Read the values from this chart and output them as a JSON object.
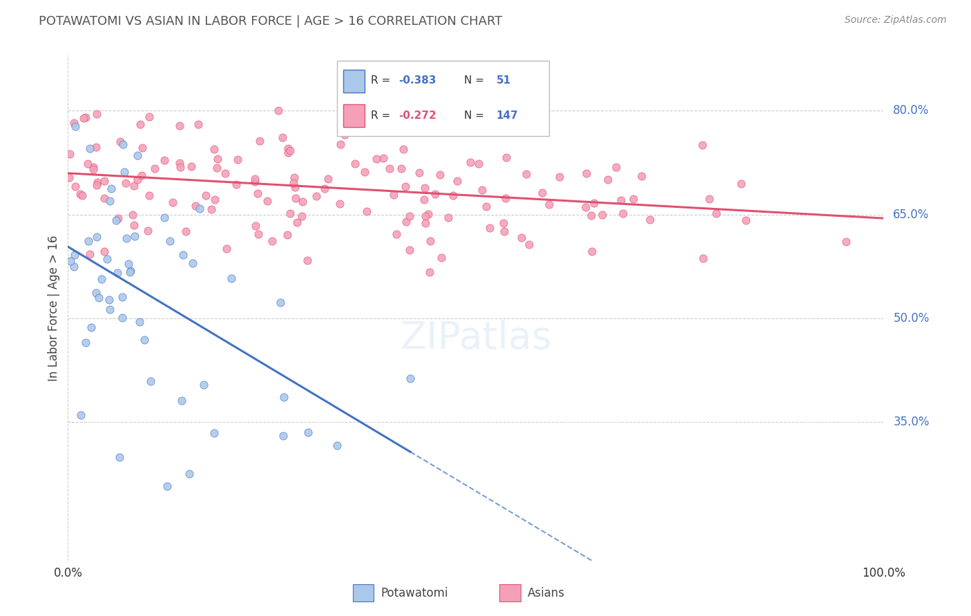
{
  "title": "POTAWATOMI VS ASIAN IN LABOR FORCE | AGE > 16 CORRELATION CHART",
  "source": "Source: ZipAtlas.com",
  "ylabel": "In Labor Force | Age > 16",
  "xlim": [
    0.0,
    1.0
  ],
  "ylim": [
    0.15,
    0.88
  ],
  "ytick_vals": [
    0.35,
    0.5,
    0.65,
    0.8
  ],
  "ytick_labels_right": [
    "35.0%",
    "50.0%",
    "65.0%",
    "80.0%"
  ],
  "xtick_vals": [
    0.0,
    1.0
  ],
  "xtick_labels": [
    "0.0%",
    "100.0%"
  ],
  "watermark": "ZIPatlas",
  "legend_blue_label": "Potawatomi",
  "legend_pink_label": "Asians",
  "corr_blue_R": "-0.383",
  "corr_blue_N": "51",
  "corr_pink_R": "-0.272",
  "corr_pink_N": "147",
  "blue_face": "#aac8ea",
  "blue_edge": "#4472c4",
  "pink_face": "#f4a0b8",
  "pink_edge": "#e05070",
  "blue_line": "#4472c4",
  "pink_line": "#e05070",
  "title_color": "#555555",
  "source_color": "#888888",
  "right_label_color": "#4472c4",
  "grid_color": "#cccccc",
  "N_pot": 51,
  "N_asi": 147
}
